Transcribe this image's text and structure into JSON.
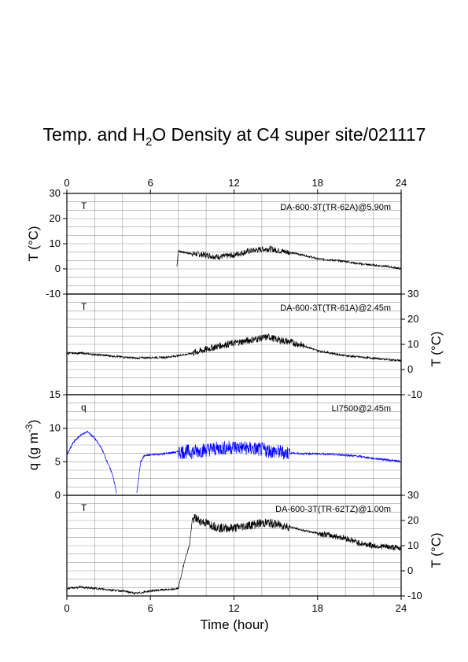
{
  "title": {
    "prefix": "Temp. and H",
    "sub": "2",
    "suffix": "O Density at C4 super site/021117"
  },
  "chart_data": {
    "type": "line",
    "x_label": "Time (hour)",
    "x_range": [
      0,
      24
    ],
    "x_ticks": [
      0,
      6,
      12,
      18,
      24
    ],
    "grid": true,
    "panels": [
      {
        "id": "p1",
        "label": "T",
        "instrument": "DA-600-3T(TR-62A)@5.90m",
        "y_label": "T (°C)",
        "y_label_side": "left",
        "y_range": [
          -10,
          30
        ],
        "y_ticks": [
          -10,
          0,
          10,
          20,
          30
        ],
        "color": "#000000",
        "data_start_hour": 8.0,
        "x": [
          7.9,
          8.0,
          8.1,
          8.5,
          9,
          9.5,
          10,
          10.5,
          11,
          12,
          13,
          14,
          14.5,
          15,
          16,
          17,
          18,
          19,
          20,
          21,
          22,
          23,
          24
        ],
        "y": [
          1,
          7,
          7,
          6.5,
          6,
          5.8,
          5.5,
          5,
          4.8,
          5.5,
          7,
          7.8,
          8,
          7.5,
          6.5,
          5.5,
          4,
          3.5,
          3,
          2,
          1.5,
          1,
          0
        ]
      },
      {
        "id": "p2",
        "label": "T",
        "instrument": "DA-600-3T(TR-61A)@2.45m",
        "y_label": "T (°C)",
        "y_label_side": "right",
        "y_range": [
          -10,
          30
        ],
        "y_ticks": [
          -10,
          0,
          10,
          20,
          30
        ],
        "color": "#000000",
        "x": [
          0,
          1,
          2,
          3,
          4,
          5,
          6,
          7,
          8,
          9,
          10,
          11,
          12,
          13,
          14,
          14.5,
          15,
          16,
          17,
          18,
          19,
          20,
          21,
          22,
          23,
          24
        ],
        "y": [
          6.5,
          6.5,
          6,
          5.5,
          5,
          4.5,
          4.8,
          4.8,
          5.5,
          6.5,
          8,
          9.5,
          10.5,
          11.5,
          12.5,
          13,
          12,
          11,
          9.5,
          7.5,
          6.5,
          5.5,
          5,
          4.5,
          4,
          3.5
        ]
      },
      {
        "id": "p3",
        "label": "q",
        "instrument": "LI7500@2.45m",
        "y_label": "q (g m-3)",
        "y_label_side": "left",
        "y_range": [
          0,
          15
        ],
        "y_ticks": [
          0,
          5,
          10,
          15
        ],
        "color": "#0000ff",
        "gap": [
          3.6,
          5.0
        ],
        "x": [
          0,
          0.5,
          1,
          1.5,
          2,
          2.5,
          3,
          3.3,
          3.6,
          5.0,
          5.3,
          5.6,
          6,
          7,
          8,
          9,
          10,
          11,
          12,
          13,
          14,
          15,
          16,
          17,
          18,
          19,
          20,
          21,
          22,
          23,
          24
        ],
        "y": [
          6,
          8,
          9,
          9.5,
          8.5,
          7,
          4.5,
          3,
          0,
          0,
          5,
          6,
          6,
          6.2,
          6.5,
          6.5,
          6.8,
          7,
          7.2,
          7,
          6.8,
          6.5,
          6.3,
          6.2,
          6.2,
          6.1,
          6,
          5.8,
          5.5,
          5.3,
          5
        ]
      },
      {
        "id": "p4",
        "label": "T",
        "instrument": "DA-600-3T(TR-62TZ)@1.00m",
        "y_label": "T (°C)",
        "y_label_side": "right",
        "y_range": [
          -10,
          30
        ],
        "y_ticks": [
          -10,
          0,
          10,
          20,
          30
        ],
        "color": "#000000",
        "x": [
          0,
          1,
          2,
          3,
          4,
          5,
          6,
          7,
          7.5,
          8,
          8.5,
          8.8,
          9,
          9.2,
          9.5,
          10,
          10.5,
          11,
          12,
          13,
          14,
          14.5,
          15,
          16,
          17,
          18,
          19,
          20,
          21,
          22,
          23,
          24
        ],
        "y": [
          -7,
          -6.5,
          -7,
          -7.5,
          -8,
          -9,
          -8,
          -7.5,
          -7.5,
          -7,
          5,
          10,
          20,
          21,
          20,
          19,
          18,
          17,
          17,
          18,
          19,
          19,
          18.5,
          17.5,
          16,
          15,
          14,
          13,
          11,
          10,
          9.5,
          9
        ]
      }
    ]
  }
}
